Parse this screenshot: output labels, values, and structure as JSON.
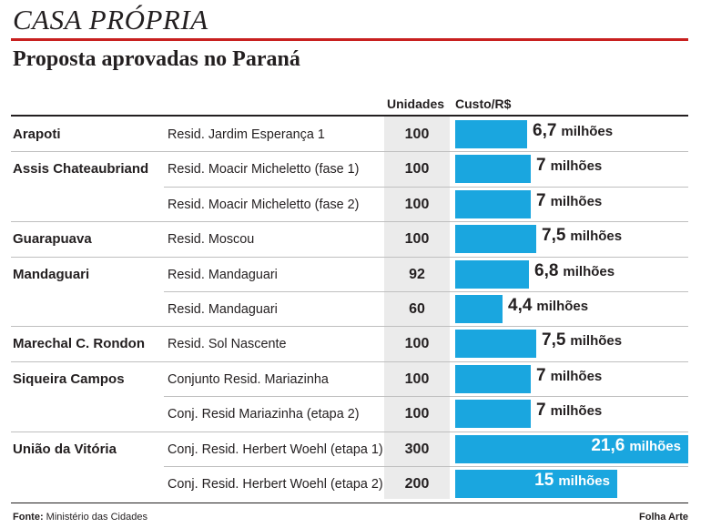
{
  "header": {
    "title": "CASA PRÓPRIA",
    "subtitle": "Proposta aprovadas no Paraná"
  },
  "columns": {
    "units": "Unidades",
    "cost": "Custo/R$"
  },
  "colors": {
    "bar": "#1aa6df",
    "title_rule": "#c8201f",
    "units_band": "#ebebeb"
  },
  "unit_suffix": "milhões",
  "chart_data": {
    "type": "bar",
    "orientation": "horizontal",
    "title": "CASA PRÓPRIA",
    "subtitle": "Proposta aprovadas no Paraná",
    "xlim": [
      0,
      21.6
    ],
    "value_unit": "milhões",
    "rows": [
      {
        "city": "Arapoti",
        "project": "Resid. Jardim Esperança 1",
        "units": "100",
        "value": 6.7,
        "label": "6,7"
      },
      {
        "city": "Assis Chateaubriand",
        "project": "Resid. Moacir Micheletto (fase 1)",
        "units": "100",
        "value": 7,
        "label": "7"
      },
      {
        "city": "",
        "project": "Resid. Moacir Micheletto (fase 2)",
        "units": "100",
        "value": 7,
        "label": "7"
      },
      {
        "city": "Guarapuava",
        "project": "Resid. Moscou",
        "units": "100",
        "value": 7.5,
        "label": "7,5"
      },
      {
        "city": "Mandaguari",
        "project": "Resid. Mandaguari",
        "units": "92",
        "value": 6.8,
        "label": "6,8"
      },
      {
        "city": "",
        "project": "Resid. Mandaguari",
        "units": "60",
        "value": 4.4,
        "label": "4,4"
      },
      {
        "city": "Marechal C. Rondon",
        "project": "Resid. Sol Nascente",
        "units": "100",
        "value": 7.5,
        "label": "7,5"
      },
      {
        "city": "Siqueira Campos",
        "project": "Conjunto Resid. Mariazinha",
        "units": "100",
        "value": 7,
        "label": "7"
      },
      {
        "city": "",
        "project": "Conj. Resid Mariazinha (etapa 2)",
        "units": "100",
        "value": 7,
        "label": "7"
      },
      {
        "city": "União da Vitória",
        "project": "Conj. Resid. Herbert Woehl (etapa 1)",
        "units": "300",
        "value": 21.6,
        "label": "21,6"
      },
      {
        "city": "",
        "project": "Conj. Resid. Herbert Woehl (etapa 2)",
        "units": "200",
        "value": 15,
        "label": "15"
      }
    ]
  },
  "footer": {
    "source_label": "Fonte:",
    "source": "Ministério das Cidades",
    "credit": "Folha Arte"
  }
}
